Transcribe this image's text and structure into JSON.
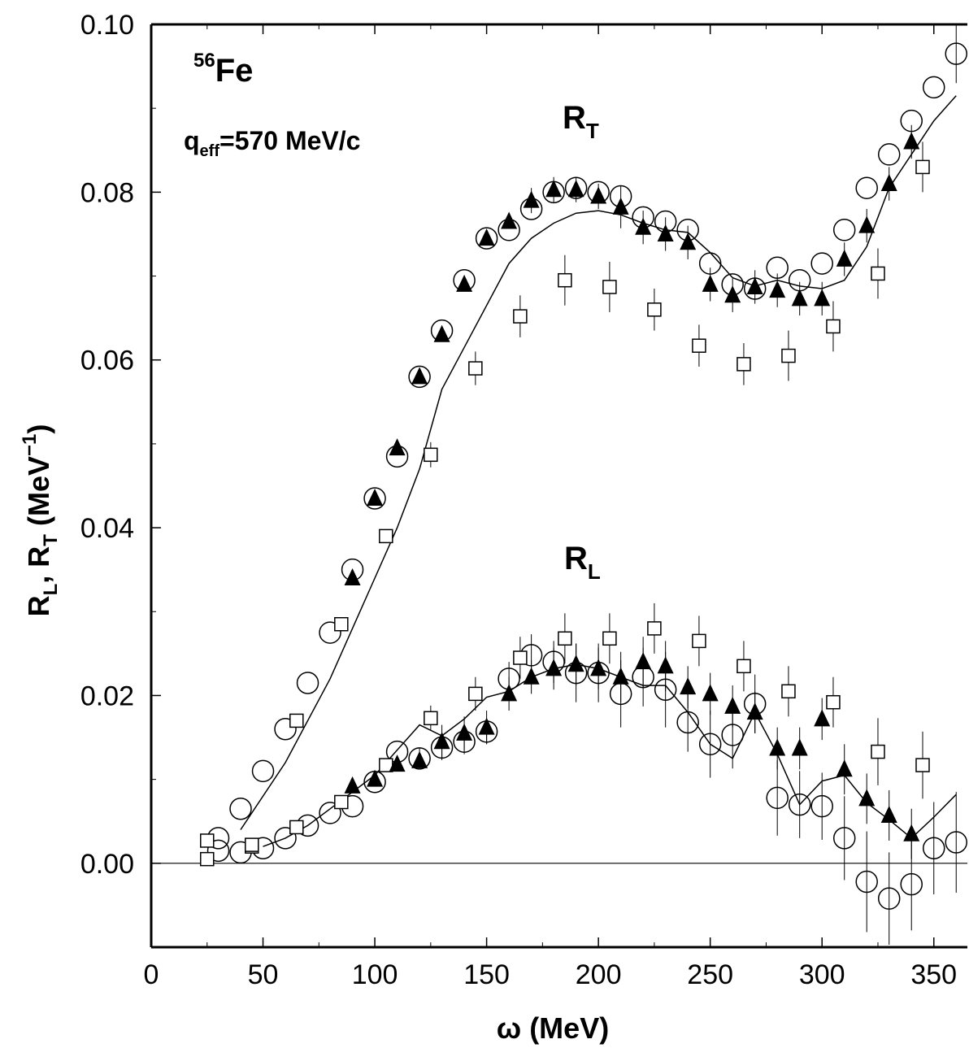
{
  "chart_data": {
    "type": "scatter",
    "xlabel": "ω (MeV)",
    "ylabel": {
      "part1": "R",
      "sub1": "L",
      "part2": ", R",
      "sub2": "T",
      "part3": " (MeV",
      "sup": "−1",
      "part4": ")"
    },
    "xlim": [
      0,
      365
    ],
    "ylim": [
      -0.01,
      0.1
    ],
    "x_ticks": [
      0,
      50,
      100,
      150,
      200,
      250,
      300,
      350
    ],
    "x_tick_labels": [
      "0",
      "50",
      "100",
      "150",
      "200",
      "250",
      "300",
      "350"
    ],
    "y_ticks": [
      0.0,
      0.02,
      0.04,
      0.06,
      0.08,
      0.1
    ],
    "y_tick_labels": [
      "0.00",
      "0.02",
      "0.04",
      "0.06",
      "0.08",
      "0.10"
    ],
    "annotations": {
      "nucleus_mass": "56",
      "nucleus_symbol": "Fe",
      "q_main": "q",
      "q_sub": "eff",
      "q_rest": "=570 MeV/c",
      "rt_main": "R",
      "rt_sub": "T",
      "rl_main": "R",
      "rl_sub": "L"
    },
    "series": [
      {
        "id": "RT-circle",
        "marker": "circle",
        "points": [
          [
            30,
            0.003
          ],
          [
            40,
            0.0065
          ],
          [
            50,
            0.011
          ],
          [
            60,
            0.016
          ],
          [
            70,
            0.0215
          ],
          [
            80,
            0.0275
          ],
          [
            90,
            0.035
          ],
          [
            100,
            0.0435
          ],
          [
            110,
            0.0485
          ],
          [
            120,
            0.058
          ],
          [
            130,
            0.0635
          ],
          [
            140,
            0.0695
          ],
          [
            150,
            0.0745
          ],
          [
            160,
            0.0755
          ],
          [
            170,
            0.078
          ],
          [
            180,
            0.08
          ],
          [
            190,
            0.0805
          ],
          [
            200,
            0.08
          ],
          [
            210,
            0.0795
          ],
          [
            220,
            0.077
          ],
          [
            230,
            0.0765
          ],
          [
            240,
            0.0755
          ],
          [
            250,
            0.0715
          ],
          [
            260,
            0.069
          ],
          [
            270,
            0.0685
          ],
          [
            280,
            0.071
          ],
          [
            290,
            0.0695
          ],
          [
            300,
            0.0715
          ],
          [
            310,
            0.0755
          ],
          [
            320,
            0.0805
          ],
          [
            330,
            0.0845
          ],
          [
            340,
            0.0885
          ],
          [
            350,
            0.0925
          ],
          [
            360,
            0.0965
          ]
        ],
        "errors": [
          0,
          0,
          0,
          0,
          0,
          0,
          0,
          0,
          0,
          0,
          0,
          0,
          0,
          0,
          0,
          0,
          0,
          0,
          0,
          0,
          0,
          0,
          0,
          0,
          0,
          0,
          0,
          0,
          0,
          0,
          0,
          0,
          0,
          0.0035
        ]
      },
      {
        "id": "RT-triangle",
        "marker": "triangle",
        "points": [
          [
            90,
            0.034
          ],
          [
            100,
            0.0435
          ],
          [
            110,
            0.0495
          ],
          [
            120,
            0.058
          ],
          [
            130,
            0.063
          ],
          [
            140,
            0.069
          ],
          [
            150,
            0.0745
          ],
          [
            160,
            0.0765
          ],
          [
            170,
            0.079
          ],
          [
            180,
            0.0803
          ],
          [
            190,
            0.0803
          ],
          [
            200,
            0.0795
          ],
          [
            210,
            0.0782
          ],
          [
            220,
            0.0758
          ],
          [
            230,
            0.075
          ],
          [
            240,
            0.074
          ],
          [
            250,
            0.069
          ],
          [
            260,
            0.0677
          ],
          [
            270,
            0.0687
          ],
          [
            280,
            0.0683
          ],
          [
            290,
            0.0673
          ],
          [
            300,
            0.0673
          ],
          [
            310,
            0.072
          ],
          [
            320,
            0.076
          ],
          [
            330,
            0.081
          ],
          [
            340,
            0.086
          ]
        ],
        "errors": [
          0,
          0,
          0,
          0,
          0,
          0,
          0,
          0,
          0.0015,
          0.0015,
          0.0015,
          0.0015,
          0.0025,
          0.002,
          0.002,
          0.002,
          0.002,
          0.002,
          0.002,
          0.002,
          0.002,
          0.002,
          0.002,
          0.002,
          0.002,
          0.002
        ]
      },
      {
        "id": "RT-square",
        "marker": "square",
        "points": [
          [
            25,
            0.0005
          ],
          [
            45,
            0.002
          ],
          [
            65,
            0.017
          ],
          [
            85,
            0.0285
          ],
          [
            105,
            0.039
          ],
          [
            125,
            0.0487
          ],
          [
            145,
            0.059
          ],
          [
            165,
            0.0652
          ],
          [
            185,
            0.0695
          ],
          [
            205,
            0.0687
          ],
          [
            225,
            0.066
          ],
          [
            245,
            0.0617
          ],
          [
            265,
            0.0595
          ],
          [
            285,
            0.0605
          ],
          [
            305,
            0.064
          ],
          [
            325,
            0.0703
          ],
          [
            345,
            0.083
          ]
        ],
        "errors": [
          0,
          0,
          0,
          0,
          0,
          0.0015,
          0.002,
          0.0025,
          0.003,
          0.003,
          0.0025,
          0.0025,
          0.0025,
          0.003,
          0.003,
          0.003,
          0.003
        ]
      },
      {
        "id": "RT-theory",
        "marker": "line",
        "points": [
          [
            40,
            0.004
          ],
          [
            60,
            0.012
          ],
          [
            80,
            0.022
          ],
          [
            100,
            0.034
          ],
          [
            110,
            0.04
          ],
          [
            120,
            0.047
          ],
          [
            130,
            0.0565
          ],
          [
            140,
            0.0615
          ],
          [
            150,
            0.0665
          ],
          [
            160,
            0.0715
          ],
          [
            170,
            0.0745
          ],
          [
            180,
            0.0763
          ],
          [
            190,
            0.0775
          ],
          [
            200,
            0.0778
          ],
          [
            210,
            0.0773
          ],
          [
            220,
            0.0763
          ],
          [
            230,
            0.0755
          ],
          [
            240,
            0.0752
          ],
          [
            250,
            0.0728
          ],
          [
            260,
            0.0698
          ],
          [
            270,
            0.0688
          ],
          [
            280,
            0.0695
          ],
          [
            290,
            0.0688
          ],
          [
            300,
            0.0685
          ],
          [
            310,
            0.0695
          ],
          [
            320,
            0.0735
          ],
          [
            330,
            0.0805
          ],
          [
            340,
            0.0845
          ],
          [
            350,
            0.0885
          ],
          [
            360,
            0.0915
          ]
        ]
      },
      {
        "id": "RL-circle",
        "marker": "circle",
        "points": [
          [
            30,
            0.0015
          ],
          [
            40,
            0.0013
          ],
          [
            50,
            0.0018
          ],
          [
            60,
            0.003
          ],
          [
            70,
            0.0045
          ],
          [
            80,
            0.006
          ],
          [
            90,
            0.0068
          ],
          [
            100,
            0.0097
          ],
          [
            110,
            0.0133
          ],
          [
            120,
            0.0125
          ],
          [
            130,
            0.0138
          ],
          [
            140,
            0.0145
          ],
          [
            150,
            0.0157
          ],
          [
            160,
            0.022
          ],
          [
            170,
            0.0248
          ],
          [
            180,
            0.024
          ],
          [
            190,
            0.0227
          ],
          [
            200,
            0.0227
          ],
          [
            210,
            0.0202
          ],
          [
            220,
            0.0222
          ],
          [
            230,
            0.0207
          ],
          [
            240,
            0.0168
          ],
          [
            250,
            0.0142
          ],
          [
            260,
            0.0153
          ],
          [
            270,
            0.019
          ],
          [
            280,
            0.0078
          ],
          [
            290,
            0.007
          ],
          [
            300,
            0.0068
          ],
          [
            310,
            0.003
          ],
          [
            320,
            -0.0022
          ],
          [
            330,
            -0.0042
          ],
          [
            340,
            -0.0025
          ],
          [
            350,
            0.0018
          ],
          [
            360,
            0.0025
          ]
        ],
        "errors": [
          0,
          0,
          0,
          0,
          0,
          0,
          0,
          0,
          0,
          0.0012,
          0.0015,
          0.0015,
          0.0015,
          0.002,
          0.0025,
          0.0025,
          0.0035,
          0.0035,
          0.004,
          0.0035,
          0.0045,
          0.0035,
          0.004,
          0.004,
          0.0035,
          0.0045,
          0.004,
          0.004,
          0.005,
          0.006,
          0.0055,
          0.0055,
          0.0055,
          0.006
        ]
      },
      {
        "id": "RL-triangle",
        "marker": "triangle",
        "points": [
          [
            90,
            0.0092
          ],
          [
            100,
            0.01
          ],
          [
            110,
            0.0118
          ],
          [
            120,
            0.0122
          ],
          [
            130,
            0.0145
          ],
          [
            140,
            0.0155
          ],
          [
            150,
            0.0162
          ],
          [
            160,
            0.0202
          ],
          [
            170,
            0.0222
          ],
          [
            180,
            0.0232
          ],
          [
            190,
            0.0237
          ],
          [
            200,
            0.0232
          ],
          [
            210,
            0.0222
          ],
          [
            220,
            0.024
          ],
          [
            230,
            0.0235
          ],
          [
            240,
            0.021
          ],
          [
            250,
            0.0202
          ],
          [
            260,
            0.0187
          ],
          [
            270,
            0.018
          ],
          [
            280,
            0.0137
          ],
          [
            290,
            0.0137
          ],
          [
            300,
            0.0172
          ],
          [
            310,
            0.0112
          ],
          [
            320,
            0.0077
          ],
          [
            330,
            0.0057
          ],
          [
            340,
            0.0035
          ]
        ],
        "errors": [
          0,
          0,
          0,
          0,
          0.002,
          0.002,
          0.002,
          0.002,
          0.002,
          0.0025,
          0.0025,
          0.0025,
          0.003,
          0.003,
          0.003,
          0.0025,
          0.0025,
          0.0025,
          0.0025,
          0.0025,
          0.0025,
          0.0025,
          0.003,
          0.003,
          0.003,
          0.003
        ]
      },
      {
        "id": "RL-square",
        "marker": "square",
        "points": [
          [
            25,
            0.0027
          ],
          [
            45,
            0.0022
          ],
          [
            65,
            0.0043
          ],
          [
            85,
            0.0073
          ],
          [
            105,
            0.0117
          ],
          [
            125,
            0.0173
          ],
          [
            145,
            0.0202
          ],
          [
            165,
            0.0245
          ],
          [
            185,
            0.0268
          ],
          [
            205,
            0.0268
          ],
          [
            225,
            0.028
          ],
          [
            245,
            0.0265
          ],
          [
            265,
            0.0235
          ],
          [
            285,
            0.0205
          ],
          [
            305,
            0.0192
          ],
          [
            325,
            0.0133
          ],
          [
            345,
            0.0117
          ]
        ],
        "errors": [
          0,
          0,
          0,
          0,
          0,
          0.0015,
          0.002,
          0.0025,
          0.003,
          0.003,
          0.003,
          0.003,
          0.003,
          0.003,
          0.003,
          0.004,
          0.004
        ]
      },
      {
        "id": "RL-theory",
        "marker": "line",
        "points": [
          [
            50,
            0.002
          ],
          [
            60,
            0.003
          ],
          [
            70,
            0.0045
          ],
          [
            80,
            0.0065
          ],
          [
            90,
            0.0085
          ],
          [
            100,
            0.0105
          ],
          [
            110,
            0.0135
          ],
          [
            120,
            0.0165
          ],
          [
            130,
            0.0152
          ],
          [
            140,
            0.0172
          ],
          [
            150,
            0.0198
          ],
          [
            160,
            0.0205
          ],
          [
            170,
            0.0222
          ],
          [
            180,
            0.0232
          ],
          [
            190,
            0.0237
          ],
          [
            200,
            0.0232
          ],
          [
            210,
            0.0222
          ],
          [
            220,
            0.0212
          ],
          [
            230,
            0.0212
          ],
          [
            240,
            0.018
          ],
          [
            250,
            0.0142
          ],
          [
            260,
            0.0125
          ],
          [
            270,
            0.018
          ],
          [
            280,
            0.013
          ],
          [
            290,
            0.007
          ],
          [
            300,
            0.0098
          ],
          [
            310,
            0.0105
          ],
          [
            320,
            0.0072
          ],
          [
            330,
            0.0052
          ],
          [
            340,
            0.003
          ],
          [
            350,
            0.0055
          ],
          [
            360,
            0.0082
          ]
        ]
      }
    ]
  }
}
